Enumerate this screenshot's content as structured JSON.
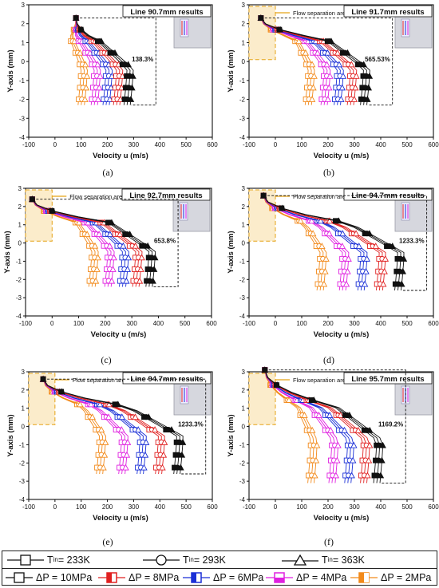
{
  "chart_data": [
    {
      "type": "line",
      "panel_label": "(a)",
      "title_box": "Line 90.7mm results",
      "flow_separation_label": "",
      "xlabel": "Velocity u (m/s)",
      "ylabel": "Y-axis (mm)",
      "xlim": [
        -100,
        600
      ],
      "ylim": [
        -4,
        3
      ],
      "xticks": [
        "-100",
        "0",
        "100",
        "200",
        "300",
        "400",
        "500",
        "600"
      ],
      "yticks": [
        "-4",
        "-3",
        "-2",
        "-1",
        "0",
        "1",
        "2",
        "3"
      ],
      "annotation": "138.3%",
      "y_top": 2.3,
      "y_bottom": -2.3,
      "top_x": 80,
      "bulk_x": [
        115,
        165,
        210,
        250,
        290
      ],
      "separation_box": false
    },
    {
      "type": "line",
      "panel_label": "(b)",
      "title_box": "Line 91.7mm results",
      "flow_separation_label": "Flow separation area",
      "xlabel": "Velocity u (m/s)",
      "ylabel": "Y-axis (mm)",
      "xlim": [
        -100,
        600
      ],
      "ylim": [
        -4,
        3
      ],
      "xticks": [
        "-100",
        "0",
        "100",
        "200",
        "300",
        "400",
        "500",
        "600"
      ],
      "yticks": [
        "-4",
        "-3",
        "-2",
        "-1",
        "0",
        "1",
        "2",
        "3"
      ],
      "annotation": "565.53%",
      "y_top": 2.3,
      "y_bottom": -2.3,
      "top_x": -55,
      "bulk_x": [
        140,
        200,
        250,
        300,
        350
      ],
      "separation_box": true
    },
    {
      "type": "line",
      "panel_label": "(c)",
      "title_box": "Line 92.7mm results",
      "flow_separation_label": "Flow separation area",
      "xlabel": "Velocity u (m/s)",
      "ylabel": "Y-axis (mm)",
      "xlim": [
        -100,
        600
      ],
      "ylim": [
        -4,
        3
      ],
      "xticks": [
        "-100",
        "0",
        "100",
        "200",
        "300",
        "400",
        "500",
        "600"
      ],
      "yticks": [
        "-4",
        "-3",
        "-2",
        "-1",
        "0",
        "1",
        "2",
        "3"
      ],
      "annotation": "653.8%",
      "y_top": 2.4,
      "y_bottom": -2.4,
      "top_x": -75,
      "bulk_x": [
        165,
        225,
        280,
        330,
        380
      ],
      "separation_box": true
    },
    {
      "type": "line",
      "panel_label": "(d)",
      "title_box": "Line 94.7mm results",
      "flow_separation_label": "Flow separation area",
      "xlabel": "Velocity u (m/s)",
      "ylabel": "Y-axis (mm)",
      "xlim": [
        -100,
        600
      ],
      "ylim": [
        -4,
        3
      ],
      "xticks": [
        "-100",
        "0",
        "100",
        "200",
        "300",
        "400",
        "500",
        "600"
      ],
      "yticks": [
        "-4",
        "-3",
        "-2",
        "-1",
        "0",
        "1",
        "2",
        "3"
      ],
      "annotation": "1233.3%",
      "y_top": 2.6,
      "y_bottom": -2.6,
      "top_x": -45,
      "bulk_x": [
        185,
        270,
        340,
        410,
        480
      ],
      "separation_box": true
    },
    {
      "type": "line",
      "panel_label": "(e)",
      "title_box": "Line 94.7mm results",
      "flow_separation_label": "Flow separation area",
      "xlabel": "Velocity u (m/s)",
      "ylabel": "Y-axis (mm)",
      "xlim": [
        -100,
        600
      ],
      "ylim": [
        -4,
        3
      ],
      "xticks": [
        "-100",
        "0",
        "100",
        "200",
        "300",
        "400",
        "500",
        "600"
      ],
      "yticks": [
        "-4",
        "-3",
        "-2",
        "-1",
        "0",
        "1",
        "2",
        "3"
      ],
      "annotation": "1233.3%",
      "y_top": 2.6,
      "y_bottom": -2.6,
      "top_x": -45,
      "bulk_x": [
        185,
        270,
        340,
        410,
        480
      ],
      "separation_box": true
    },
    {
      "type": "line",
      "panel_label": "(f)",
      "title_box": "Line 95.7mm results",
      "flow_separation_label": "Flow separation area",
      "xlabel": "Velocity u (m/s)",
      "ylabel": "Y-axis (mm)",
      "xlim": [
        -100,
        600
      ],
      "ylim": [
        -4,
        3
      ],
      "xticks": [
        "-100",
        "0",
        "100",
        "200",
        "300",
        "400",
        "500",
        "600"
      ],
      "yticks": [
        "-4",
        "-3",
        "-2",
        "-1",
        "0",
        "1",
        "2",
        "3"
      ],
      "annotation": "1169.2%",
      "y_top": 3.1,
      "y_bottom": -3.1,
      "top_x": -40,
      "bulk_x": [
        150,
        230,
        290,
        350,
        400
      ],
      "separation_box": true
    }
  ],
  "series": [
    {
      "name": "ΔP = 2MPa",
      "color": "#f28a1b"
    },
    {
      "name": "ΔP = 4MPa",
      "color": "#e020e0"
    },
    {
      "name": "ΔP = 6MPa",
      "color": "#1a2fd6"
    },
    {
      "name": "ΔP = 8MPa",
      "color": "#e02020"
    },
    {
      "name": "ΔP = 10MPa",
      "color": "#111111"
    }
  ],
  "legend": {
    "row1": [
      {
        "label": "T",
        "sub": "in",
        "suffix": " = 233K",
        "marker": "square"
      },
      {
        "label": "T",
        "sub": "in",
        "suffix": " = 293K",
        "marker": "circle"
      },
      {
        "label": "T",
        "sub": "in",
        "suffix": " = 363K",
        "marker": "triangle"
      }
    ],
    "row2": [
      {
        "label": "ΔP = 10MPa",
        "color": "#111111"
      },
      {
        "label": "ΔP = 8MPa",
        "color": "#e02020"
      },
      {
        "label": "ΔP = 6MPa",
        "color": "#1a2fd6"
      },
      {
        "label": "ΔP = 4MPa",
        "color": "#e020e0"
      },
      {
        "label": "ΔP = 2MPa",
        "color": "#f28a1b"
      }
    ]
  }
}
